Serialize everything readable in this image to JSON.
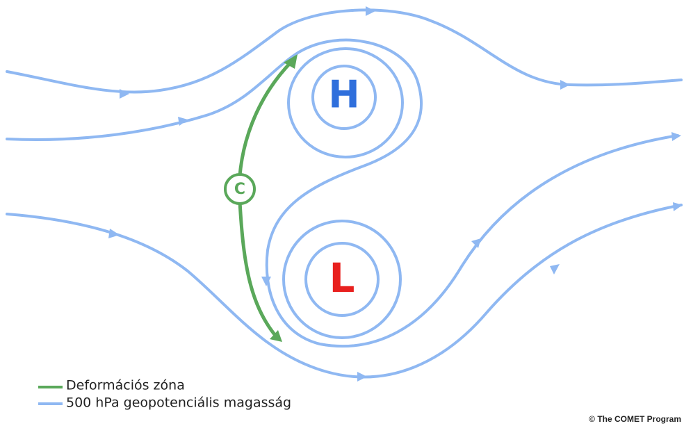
{
  "labels": {
    "high": "H",
    "low": "L",
    "center": "C"
  },
  "legend": [
    "Deformációs zóna",
    "500 hPa geopotenciális magasság"
  ],
  "credit": "© The COMET Program"
}
